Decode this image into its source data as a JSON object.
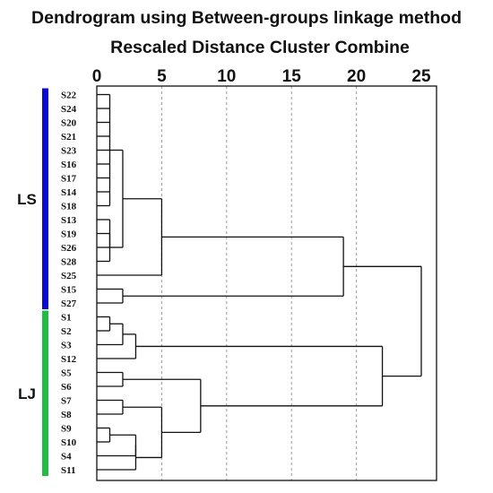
{
  "chart_data": {
    "type": "dendrogram",
    "title": "Dendrogram using Between-groups linkage method",
    "subtitle": "Rescaled Distance Cluster Combine",
    "x_ticks": [
      0,
      5,
      10,
      15,
      20,
      25
    ],
    "xlim": [
      0,
      25
    ],
    "grid": true,
    "leaves": [
      "S22",
      "S24",
      "S20",
      "S21",
      "S23",
      "S16",
      "S17",
      "S14",
      "S18",
      "S13",
      "S19",
      "S26",
      "S28",
      "S25",
      "S15",
      "S27",
      "S1",
      "S2",
      "S3",
      "S12",
      "S5",
      "S6",
      "S7",
      "S8",
      "S9",
      "S10",
      "S4",
      "S11"
    ],
    "merges": [
      {
        "id": "a1",
        "children": [
          "S22",
          "S24",
          "S20",
          "S21",
          "S23",
          "S16",
          "S17",
          "S14",
          "S18"
        ],
        "height": 1
      },
      {
        "id": "a2",
        "children": [
          "S13",
          "S19",
          "S26"
        ],
        "height": 1
      },
      {
        "id": "a3",
        "children": [
          "a2",
          "S28"
        ],
        "height": 1
      },
      {
        "id": "a4",
        "children": [
          "a1",
          "a3"
        ],
        "height": 2
      },
      {
        "id": "a5",
        "children": [
          "a4",
          "S25"
        ],
        "height": 5
      },
      {
        "id": "a6",
        "children": [
          "S15",
          "S27"
        ],
        "height": 2
      },
      {
        "id": "a7",
        "children": [
          "a5",
          "a6"
        ],
        "height": 19
      },
      {
        "id": "b1",
        "children": [
          "S1",
          "S2"
        ],
        "height": 1
      },
      {
        "id": "b2",
        "children": [
          "b1",
          "S3"
        ],
        "height": 2
      },
      {
        "id": "b3",
        "children": [
          "b2",
          "S12"
        ],
        "height": 3
      },
      {
        "id": "b4",
        "children": [
          "S5",
          "S6"
        ],
        "height": 2
      },
      {
        "id": "b5",
        "children": [
          "S7",
          "S8"
        ],
        "height": 2
      },
      {
        "id": "b6",
        "children": [
          "S9",
          "S10"
        ],
        "height": 1
      },
      {
        "id": "b7",
        "children": [
          "b6",
          "S4"
        ],
        "height": 3
      },
      {
        "id": "b8",
        "children": [
          "b7",
          "S11"
        ],
        "height": 3
      },
      {
        "id": "b9",
        "children": [
          "b5",
          "b8"
        ],
        "height": 5
      },
      {
        "id": "b10",
        "children": [
          "b4",
          "b9"
        ],
        "height": 8
      },
      {
        "id": "b11",
        "children": [
          "b3",
          "b10"
        ],
        "height": 22
      },
      {
        "id": "root",
        "children": [
          "a7",
          "b11"
        ],
        "height": 25
      }
    ],
    "groups": [
      {
        "label": "LS",
        "first_leaf": "S22",
        "last_leaf": "S27",
        "color": "#0a0ad0"
      },
      {
        "label": "LJ",
        "first_leaf": "S1",
        "last_leaf": "S11",
        "color": "#22bb44"
      }
    ]
  }
}
